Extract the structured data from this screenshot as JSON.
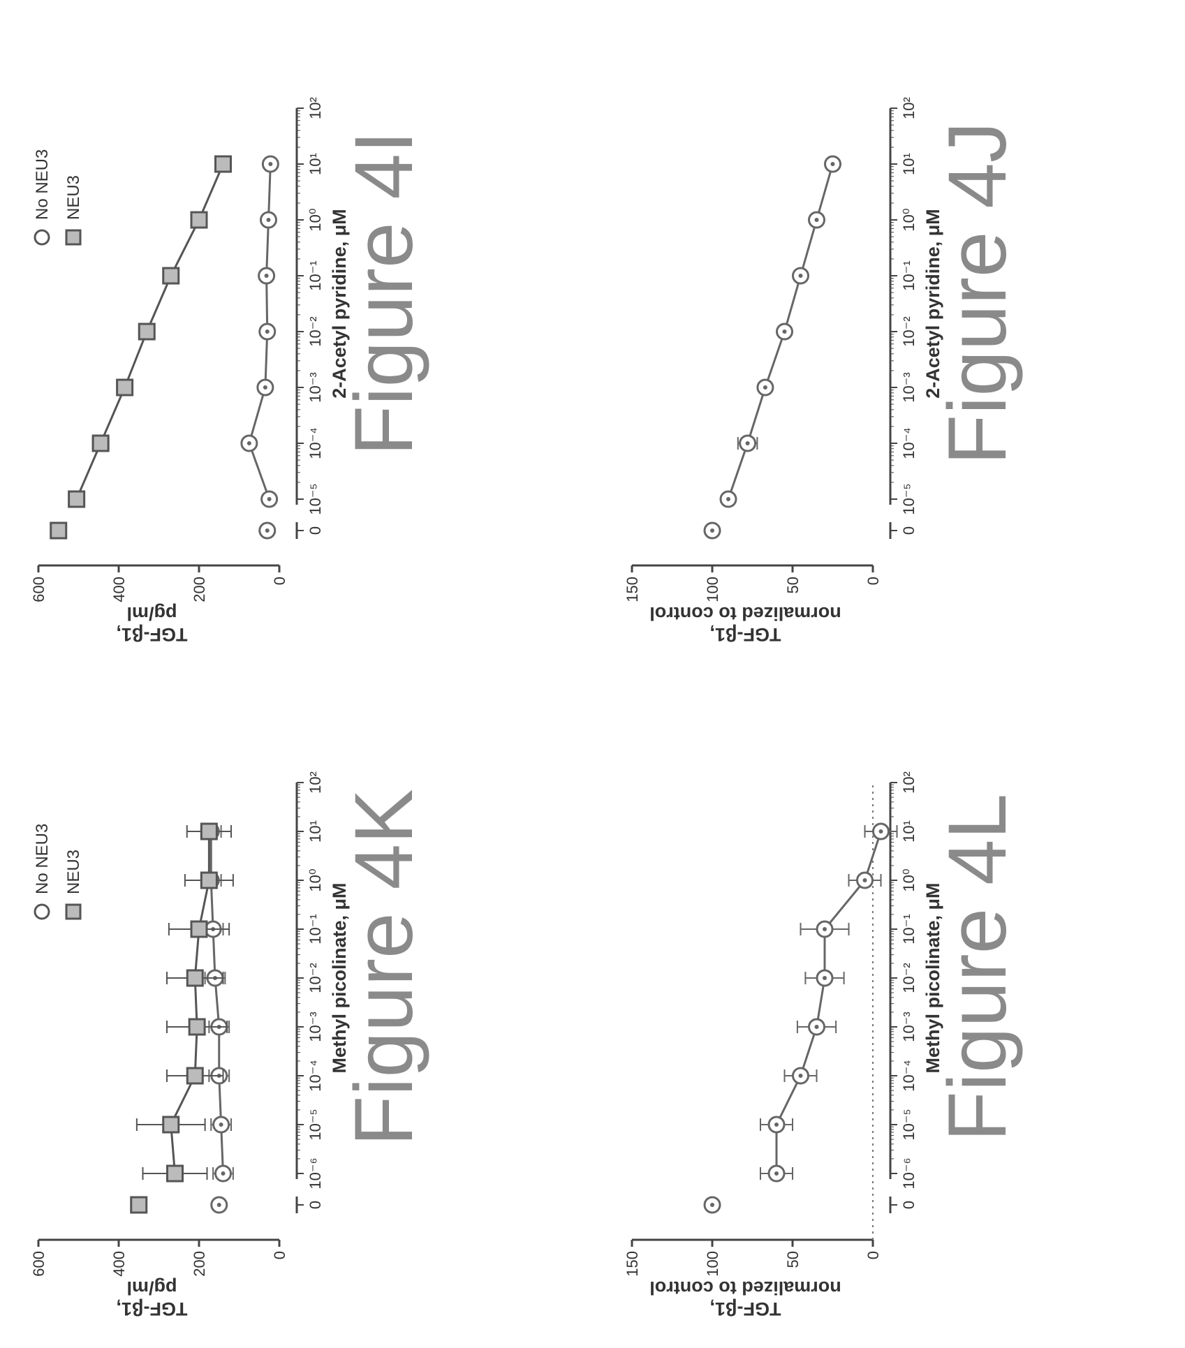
{
  "page": {
    "rotation": "content rotated 90 degrees counter-clockwise (landscape figure)"
  },
  "chart_data": [
    {
      "id": "4I",
      "type": "scatter",
      "figure_label": "Figure 4I",
      "ylabel": "TGF-β1, pg/ml",
      "xlabel": "2-Acetyl pyridine, μM",
      "xscale": "log",
      "ylim": [
        0,
        600
      ],
      "yticks": [
        "0",
        "200",
        "400",
        "600"
      ],
      "xticks": [
        "0",
        "10⁻⁵",
        "10⁻⁴",
        "10⁻³",
        "10⁻²",
        "10⁻¹",
        "10⁰",
        "10¹",
        "10²"
      ],
      "x": [
        1e-05,
        0.0001,
        0.001,
        0.01,
        0.1,
        1,
        10
      ],
      "legend": [
        "No NEU3",
        "NEU3"
      ],
      "legend_position": "top-right",
      "series": [
        {
          "name": "No NEU3",
          "marker": "circle",
          "control": 30,
          "values": [
            25,
            75,
            35,
            30,
            32,
            27,
            22
          ],
          "errors": [
            0,
            0,
            0,
            0,
            0,
            0,
            0
          ]
        },
        {
          "name": "NEU3",
          "marker": "square",
          "control": 550,
          "values": [
            505,
            445,
            385,
            330,
            270,
            200,
            140
          ],
          "errors": [
            0,
            20,
            0,
            0,
            0,
            12,
            0
          ]
        }
      ],
      "annotations": []
    },
    {
      "id": "4J",
      "type": "scatter",
      "figure_label": "Figure 4J",
      "ylabel": "TGF-β1, normalized to control",
      "xlabel": "2-Acetyl pyridine, μM",
      "xscale": "log",
      "ylim": [
        0,
        150
      ],
      "yticks": [
        "0",
        "50",
        "100",
        "150"
      ],
      "xticks": [
        "0",
        "10⁻⁵",
        "10⁻⁴",
        "10⁻³",
        "10⁻²",
        "10⁻¹",
        "10⁰",
        "10¹",
        "10²"
      ],
      "x": [
        1e-05,
        0.0001,
        0.001,
        0.01,
        0.1,
        1,
        10
      ],
      "legend": [],
      "series": [
        {
          "name": "",
          "marker": "circle",
          "control": 100,
          "values": [
            90,
            78,
            67,
            55,
            45,
            35,
            25
          ],
          "errors": [
            0,
            6,
            0,
            0,
            3,
            0,
            0
          ]
        }
      ],
      "annotations": []
    },
    {
      "id": "4K",
      "type": "scatter",
      "figure_label": "Figure 4K",
      "ylabel": "TGF-β1, pg/ml",
      "xlabel": "Methyl picolinate, μM",
      "xscale": "log",
      "ylim": [
        0,
        600
      ],
      "yticks": [
        "0",
        "200",
        "400",
        "600"
      ],
      "xticks": [
        "0",
        "10⁻⁶",
        "10⁻⁵",
        "10⁻⁴",
        "10⁻³",
        "10⁻²",
        "10⁻¹",
        "10⁰",
        "10¹",
        "10²"
      ],
      "x": [
        1e-06,
        1e-05,
        0.0001,
        0.001,
        0.01,
        0.1,
        1,
        10
      ],
      "legend": [
        "No NEU3",
        "NEU3"
      ],
      "legend_position": "top-right",
      "series": [
        {
          "name": "No NEU3",
          "marker": "circle",
          "control": 150,
          "values": [
            140,
            145,
            150,
            150,
            160,
            165,
            170,
            170
          ],
          "errors": [
            25,
            25,
            25,
            25,
            25,
            25,
            25,
            25
          ]
        },
        {
          "name": "NEU3",
          "marker": "square",
          "control": 350,
          "values": [
            260,
            270,
            210,
            205,
            210,
            200,
            175,
            175
          ],
          "errors": [
            80,
            85,
            70,
            75,
            70,
            75,
            60,
            55
          ]
        }
      ],
      "annotations": []
    },
    {
      "id": "4L",
      "type": "scatter",
      "figure_label": "Figure 4L",
      "ylabel": "TGF-β1, normalized to control",
      "xlabel": "Methyl picolinate, μM",
      "xscale": "log",
      "ylim": [
        0,
        150
      ],
      "yticks": [
        "0",
        "50",
        "100",
        "150"
      ],
      "xticks": [
        "0",
        "10⁻⁶",
        "10⁻⁵",
        "10⁻⁴",
        "10⁻³",
        "10⁻²",
        "10⁻¹",
        "10⁰",
        "10¹",
        "10²"
      ],
      "x": [
        1e-06,
        1e-05,
        0.0001,
        0.001,
        0.01,
        0.1,
        1,
        10
      ],
      "legend": [],
      "series": [
        {
          "name": "",
          "marker": "circle",
          "control": 100,
          "values": [
            60,
            60,
            45,
            35,
            30,
            30,
            5,
            -5
          ],
          "errors": [
            10,
            10,
            10,
            12,
            12,
            15,
            10,
            10
          ]
        }
      ],
      "annotations": [
        "dotted reference line at y = 0"
      ]
    }
  ]
}
